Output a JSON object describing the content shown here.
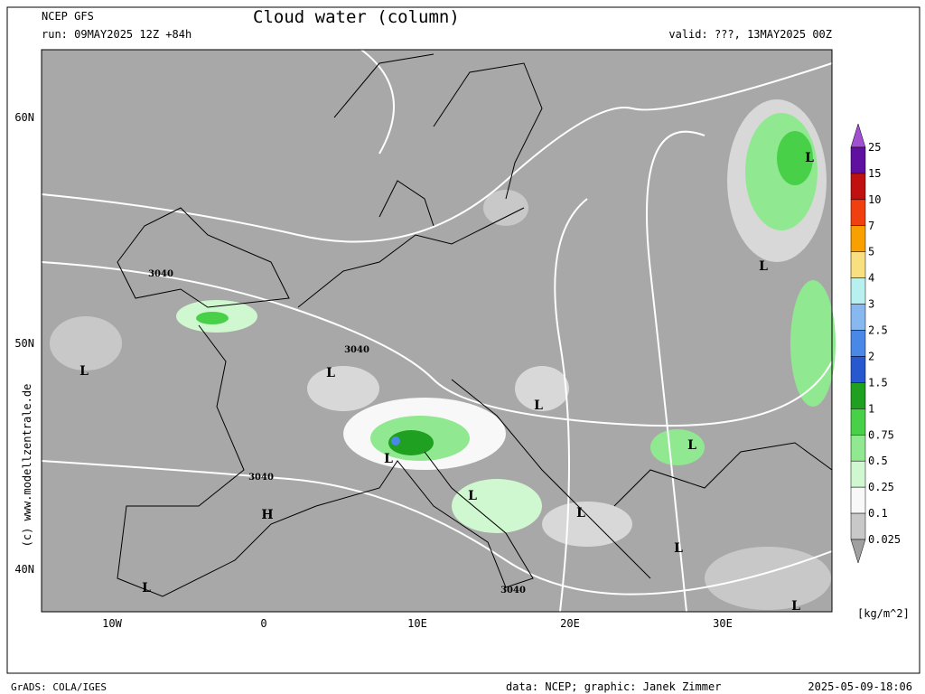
{
  "header": {
    "model": "NCEP GFS",
    "run": "run: 09MAY2025 12Z +84h",
    "title": "Cloud water (column)",
    "valid": "valid: ???, 13MAY2025 00Z"
  },
  "map": {
    "lat_labels": [
      "60N",
      "50N",
      "40N"
    ],
    "lon_labels": [
      "10W",
      "0",
      "10E",
      "20E",
      "30E"
    ],
    "contour_labels": [
      "3040",
      "3040",
      "3040",
      "3040"
    ],
    "systems": [
      "L",
      "L",
      "L",
      "L",
      "L",
      "L",
      "L",
      "L",
      "L",
      "L",
      "L",
      "L",
      "H"
    ],
    "watermark": "(c) www.modellzentrale.de"
  },
  "legend": {
    "levels": [
      "25",
      "15",
      "10",
      "7",
      "5",
      "4",
      "3",
      "2.5",
      "2",
      "1.5",
      "1",
      "0.75",
      "0.5",
      "0.25",
      "0.1",
      "0.025"
    ],
    "colors": [
      "#a050d0",
      "#6010a0",
      "#c01010",
      "#f04010",
      "#f8a000",
      "#f8e080",
      "#b8f0f0",
      "#88b8f0",
      "#4a88e8",
      "#2858d0",
      "#20a020",
      "#48d048",
      "#90e890",
      "#d0f8d0",
      "#f8f8f8",
      "#c8c8c8",
      "#a0a0a0"
    ],
    "unit": "[kg/m^2]"
  },
  "footer": {
    "left": "GrADS: COLA/IGES",
    "credit": "data: NCEP; graphic: Janek Zimmer",
    "timestamp": "2025-05-09-18:06"
  }
}
